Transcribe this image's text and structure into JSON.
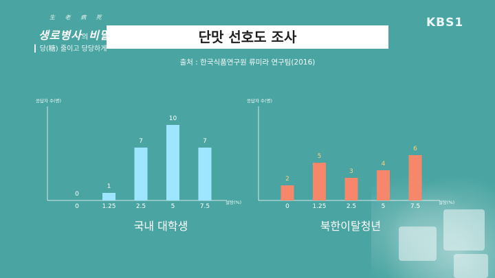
{
  "broadcaster": "KBS1",
  "show": {
    "small_text": "生 老 病 死",
    "logo_main": "생로병사",
    "logo_mid": "의",
    "logo_end": "비밀",
    "subtitle": "▎당(糖) 줄이고 당당하게 삽시"
  },
  "title": "단맛 선호도 조사",
  "source": "출처 : 한국식품연구원 류미라 연구팀(2016)",
  "colors": {
    "background": "#4aa5a2",
    "bar_blue": "#9ee6ff",
    "bar_orange": "#f7876a",
    "label_orange": "#ffd07a"
  },
  "chart_data": [
    {
      "type": "bar",
      "title": "국내 대학생",
      "ylabel": "응답자 수(명)",
      "xlabel": "설탕(%)",
      "categories": [
        "0",
        "1.25",
        "2.5",
        "5",
        "7.5"
      ],
      "values": [
        0,
        1,
        7,
        10,
        7
      ],
      "ylim": [
        0,
        12
      ],
      "grid": false,
      "legend": "none"
    },
    {
      "type": "bar",
      "title": "북한이탈청년",
      "ylabel": "응답자 수(명)",
      "xlabel": "설탕(%)",
      "categories": [
        "0",
        "1.25",
        "2.5",
        "5",
        "7.5"
      ],
      "values": [
        2,
        5,
        3,
        4,
        6
      ],
      "ylim": [
        0,
        12
      ],
      "grid": false,
      "legend": "none"
    }
  ]
}
